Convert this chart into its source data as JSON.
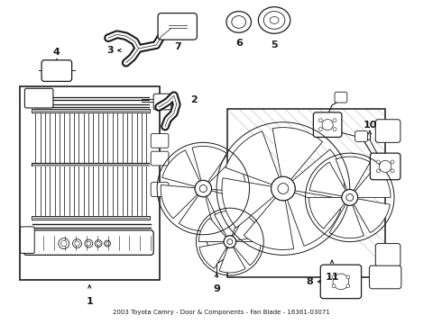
{
  "title": "2003 Toyota Camry - Door & Components - Fan Blade - 16361-03071",
  "bg_color": "#ffffff",
  "line_color": "#1a1a1a",
  "fig_width": 4.9,
  "fig_height": 3.6,
  "dpi": 100
}
